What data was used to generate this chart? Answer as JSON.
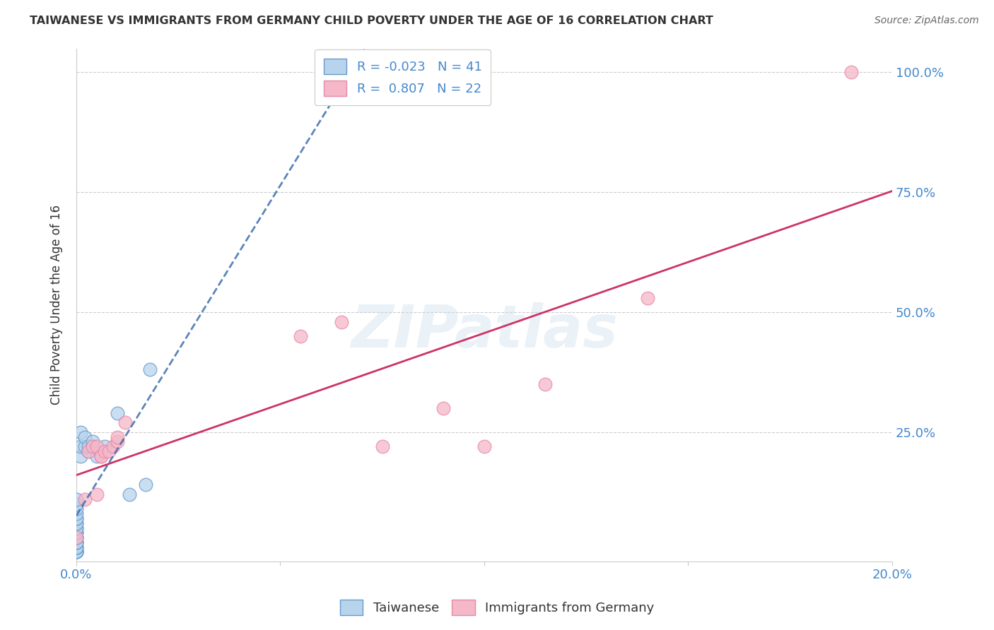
{
  "title": "TAIWANESE VS IMMIGRANTS FROM GERMANY CHILD POVERTY UNDER THE AGE OF 16 CORRELATION CHART",
  "source": "Source: ZipAtlas.com",
  "ylabel": "Child Poverty Under the Age of 16",
  "watermark": "ZIPatlas",
  "legend_entries": [
    {
      "label": "R = -0.023   N = 41",
      "color": "#b8d4ed"
    },
    {
      "label": "R =  0.807   N = 22",
      "color": "#f4b8c8"
    }
  ],
  "legend_bottom": [
    "Taiwanese",
    "Immigrants from Germany"
  ],
  "xlim": [
    0.0,
    0.2
  ],
  "ylim": [
    -0.02,
    1.05
  ],
  "taiwanese_x": [
    0.0,
    0.0,
    0.0,
    0.0,
    0.0,
    0.0,
    0.0,
    0.0,
    0.0,
    0.0,
    0.0,
    0.0,
    0.0,
    0.0,
    0.0,
    0.0,
    0.0,
    0.0,
    0.0,
    0.0,
    0.0,
    0.0,
    0.0,
    0.0,
    0.0,
    0.0,
    0.001,
    0.001,
    0.001,
    0.002,
    0.002,
    0.003,
    0.003,
    0.004,
    0.004,
    0.005,
    0.007,
    0.01,
    0.013,
    0.017,
    0.018
  ],
  "taiwanese_y": [
    0.0,
    0.0,
    0.0,
    0.0,
    0.0,
    0.01,
    0.01,
    0.01,
    0.02,
    0.02,
    0.02,
    0.03,
    0.03,
    0.03,
    0.04,
    0.04,
    0.05,
    0.05,
    0.06,
    0.06,
    0.07,
    0.07,
    0.08,
    0.09,
    0.1,
    0.11,
    0.2,
    0.22,
    0.25,
    0.22,
    0.24,
    0.21,
    0.22,
    0.22,
    0.23,
    0.2,
    0.22,
    0.29,
    0.12,
    0.14,
    0.38
  ],
  "german_x": [
    0.0,
    0.002,
    0.003,
    0.004,
    0.005,
    0.005,
    0.006,
    0.006,
    0.007,
    0.008,
    0.009,
    0.01,
    0.01,
    0.012,
    0.055,
    0.065,
    0.075,
    0.09,
    0.1,
    0.115,
    0.14,
    0.19
  ],
  "german_y": [
    0.03,
    0.11,
    0.21,
    0.22,
    0.22,
    0.12,
    0.2,
    0.2,
    0.21,
    0.21,
    0.22,
    0.23,
    0.24,
    0.27,
    0.45,
    0.48,
    0.22,
    0.3,
    0.22,
    0.35,
    0.53,
    1.0
  ],
  "taiwanese_color": "#b8d4ed",
  "taiwanese_edge_color": "#6699cc",
  "taiwanese_line_color": "#3366aa",
  "german_color": "#f4b8c8",
  "german_edge_color": "#e888aa",
  "german_line_color": "#cc3366",
  "background_color": "#ffffff",
  "grid_color": "#cccccc",
  "title_color": "#333333",
  "source_color": "#666666",
  "tick_color": "#4488cc"
}
